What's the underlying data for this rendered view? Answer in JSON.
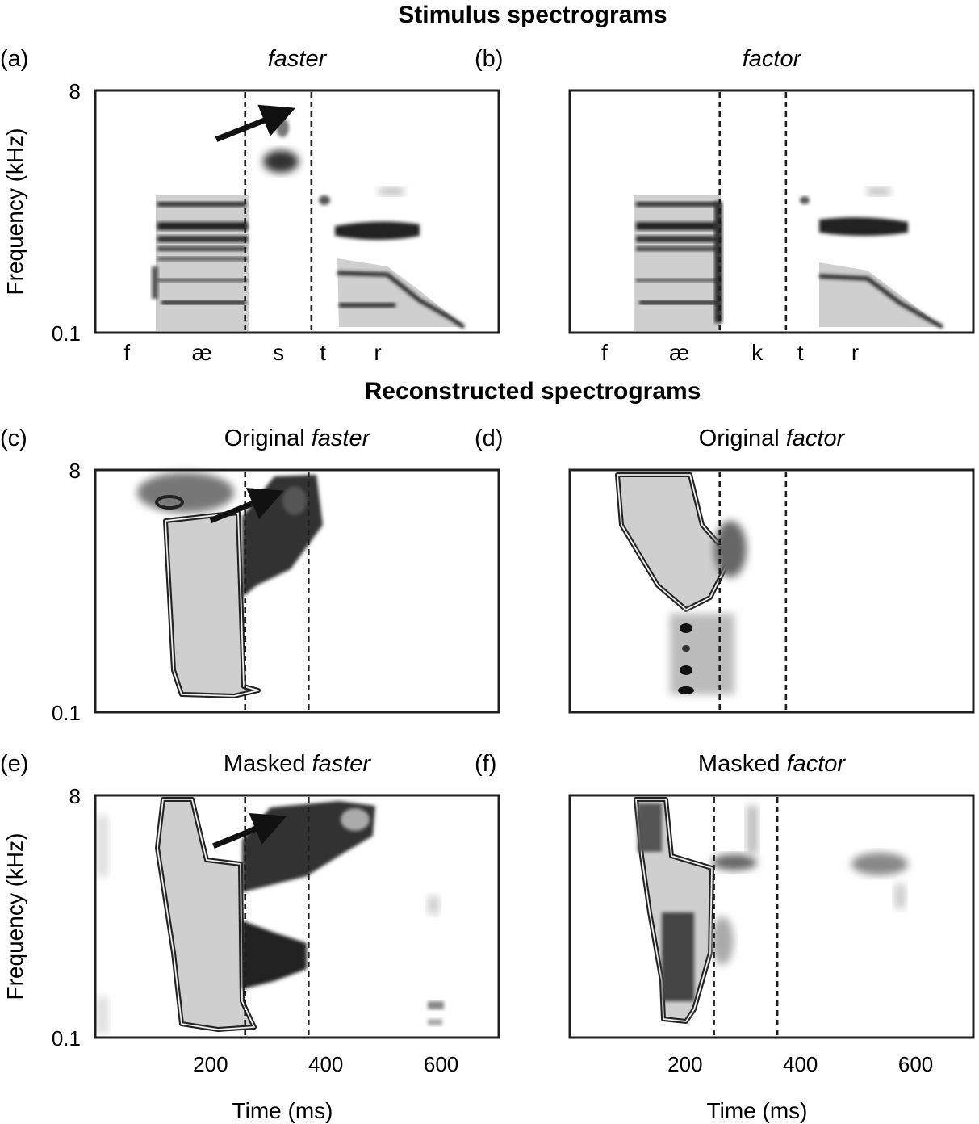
{
  "figure": {
    "section_titles": {
      "stimulus": "Stimulus spectrograms",
      "reconstructed": "Reconstructed spectrograms"
    }
  },
  "chart_data": [
    {
      "id": "a",
      "type": "heatmap",
      "label": "(a)",
      "title_plain": "",
      "title_italic": "faster",
      "ylabel": "Frequency (kHz)",
      "yticks": [
        "8",
        "0.1"
      ],
      "ylim": [
        0.1,
        8
      ],
      "xlabel": "",
      "xticks": [],
      "xlim": [
        0,
        700
      ],
      "boundaries_ms": [
        260,
        375
      ],
      "arrow_ms": [
        {
          "from": [
            210,
            3.3
          ],
          "to": [
            320,
            5.2
          ]
        }
      ],
      "phonemes": [
        {
          "symbol": "f",
          "t": 55
        },
        {
          "symbol": "æ",
          "t": 185
        },
        {
          "symbol": "s",
          "t": 318
        },
        {
          "symbol": "t",
          "t": 395
        },
        {
          "symbol": "r",
          "t": 490
        }
      ]
    },
    {
      "id": "b",
      "type": "heatmap",
      "label": "(b)",
      "title_plain": "",
      "title_italic": "factor",
      "ylabel": "",
      "yticks": [],
      "ylim": [
        0.1,
        8
      ],
      "xlabel": "",
      "xticks": [],
      "xlim": [
        0,
        700
      ],
      "boundaries_ms": [
        260,
        375
      ],
      "arrow_ms": [],
      "phonemes": [
        {
          "symbol": "f",
          "t": 60
        },
        {
          "symbol": "æ",
          "t": 190
        },
        {
          "symbol": "k",
          "t": 325
        },
        {
          "symbol": "t",
          "t": 400
        },
        {
          "symbol": "r",
          "t": 495
        }
      ]
    },
    {
      "id": "c",
      "type": "heatmap",
      "label": "(c)",
      "title_plain": "Original ",
      "title_italic": "faster",
      "ylabel": "",
      "yticks": [
        "8",
        "0.1"
      ],
      "ylim": [
        0.1,
        8
      ],
      "xlabel": "",
      "xticks": [],
      "xlim": [
        0,
        700
      ],
      "boundaries_ms": [
        260,
        370
      ],
      "arrow_ms": [
        {
          "from": [
            200,
            3.2
          ],
          "to": [
            300,
            4.9
          ]
        }
      ],
      "phonemes": []
    },
    {
      "id": "d",
      "type": "heatmap",
      "label": "(d)",
      "title_plain": "Original ",
      "title_italic": "factor",
      "ylabel": "",
      "yticks": [],
      "ylim": [
        0.1,
        8
      ],
      "xlabel": "",
      "xticks": [],
      "xlim": [
        0,
        700
      ],
      "boundaries_ms": [
        260,
        375
      ],
      "arrow_ms": [],
      "phonemes": []
    },
    {
      "id": "e",
      "type": "heatmap",
      "label": "(e)",
      "title_plain": "Masked ",
      "title_italic": "faster",
      "ylabel": "Frequency (kHz)",
      "yticks": [
        "8",
        "0.1"
      ],
      "ylim": [
        0.1,
        8
      ],
      "xlabel": "Time (ms)",
      "xticks": [
        200,
        400,
        600
      ],
      "xlim": [
        0,
        700
      ],
      "boundaries_ms": [
        260,
        370
      ],
      "arrow_ms": [
        {
          "from": [
            205,
            3.2
          ],
          "to": [
            305,
            4.9
          ]
        }
      ],
      "phonemes": []
    },
    {
      "id": "f",
      "type": "heatmap",
      "label": "(f)",
      "title_plain": "Masked ",
      "title_italic": "factor",
      "ylabel": "",
      "yticks": [],
      "ylim": [
        0.1,
        8
      ],
      "xlabel": "Time (ms)",
      "xticks": [
        200,
        400,
        600
      ],
      "xlim": [
        0,
        700
      ],
      "boundaries_ms": [
        250,
        360
      ],
      "arrow_ms": [],
      "phonemes": []
    }
  ]
}
